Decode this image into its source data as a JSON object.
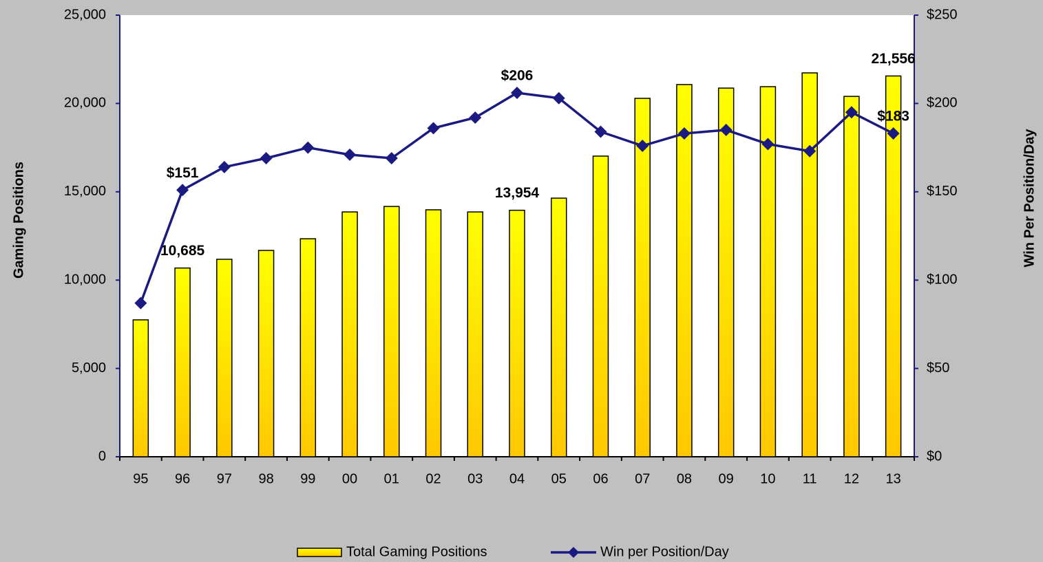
{
  "chart_data": {
    "type": "bar_line",
    "categories": [
      "95",
      "96",
      "97",
      "98",
      "99",
      "00",
      "01",
      "02",
      "03",
      "04",
      "05",
      "06",
      "07",
      "08",
      "09",
      "10",
      "11",
      "12",
      "13"
    ],
    "series": [
      {
        "name": "Total Gaming Positions",
        "type": "bar",
        "color": "#ffee00",
        "values": [
          7750,
          10685,
          11180,
          11680,
          12340,
          13860,
          14170,
          13980,
          13860,
          13954,
          14640,
          17020,
          20290,
          21070,
          20870,
          20950,
          21730,
          20400,
          21556
        ],
        "value_labels": [
          null,
          "10,685",
          null,
          null,
          null,
          null,
          null,
          null,
          null,
          "13,954",
          null,
          null,
          null,
          null,
          null,
          null,
          null,
          null,
          "21,556"
        ]
      },
      {
        "name": "Win per Position/Day",
        "type": "line",
        "axis": "y2",
        "color": "#1a1a80",
        "values": [
          87,
          151,
          164,
          169,
          175,
          171,
          169,
          186,
          192,
          206,
          203,
          184,
          176,
          183,
          185,
          177,
          173,
          195,
          183
        ],
        "value_labels": [
          null,
          "$151",
          null,
          null,
          null,
          null,
          null,
          null,
          null,
          "$206",
          null,
          null,
          null,
          null,
          null,
          null,
          null,
          null,
          "$183"
        ]
      }
    ],
    "y_label": "Gaming Positions",
    "y2_label": "Win Per Position/Day",
    "ylim": [
      0,
      25000
    ],
    "yticks": [
      0,
      {
        "value": 5000,
        "label": "5,000"
      },
      {
        "value": 10000,
        "label": "10,000"
      },
      {
        "value": 15000,
        "label": "15,000"
      },
      {
        "value": 20000,
        "label": "20,000"
      },
      {
        "value": 25000,
        "label": "25,000"
      }
    ],
    "y2lim": [
      0,
      250
    ],
    "y2ticks": [
      {
        "value": 0,
        "label": "$0"
      },
      {
        "value": 50,
        "label": "$50"
      },
      {
        "value": 100,
        "label": "$100"
      },
      {
        "value": 150,
        "label": "$150"
      },
      {
        "value": 200,
        "label": "$200"
      },
      {
        "value": 250,
        "label": "$250"
      }
    ],
    "legend": "bottom"
  }
}
